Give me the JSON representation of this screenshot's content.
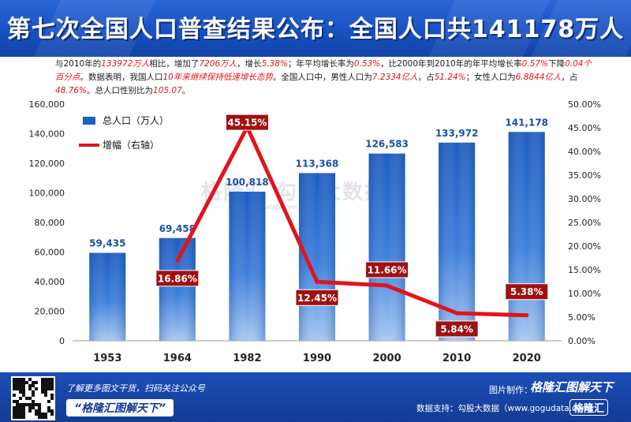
{
  "header": {
    "title": "第七次全国人口普查结果公布：全国人口共141178万人"
  },
  "description": {
    "segments": [
      {
        "text": "与2010年的",
        "hl": false
      },
      {
        "text": "133972万人",
        "hl": true
      },
      {
        "text": "相比，增加了",
        "hl": false
      },
      {
        "text": "7206万人",
        "hl": true
      },
      {
        "text": "，增长",
        "hl": false
      },
      {
        "text": "5.38%",
        "hl": true
      },
      {
        "text": "；年平均增长率为",
        "hl": false
      },
      {
        "text": "0.53%",
        "hl": true
      },
      {
        "text": "，比2000年到2010年的年平均增长率",
        "hl": false
      },
      {
        "text": "0.57%",
        "hl": true
      },
      {
        "text": "下降",
        "hl": false
      },
      {
        "text": "0.04个百分点",
        "hl": true
      },
      {
        "text": "。数据表明，我国人口",
        "hl": false
      },
      {
        "text": "10年来继续保持低速增长态势",
        "hl": true
      },
      {
        "text": "。全国人口中，男性人口为",
        "hl": false
      },
      {
        "text": "7.2334亿人",
        "hl": true
      },
      {
        "text": "，占",
        "hl": false
      },
      {
        "text": "51.24%",
        "hl": true
      },
      {
        "text": "；女性人口为",
        "hl": false
      },
      {
        "text": "6.8844亿人",
        "hl": true
      },
      {
        "text": "，占",
        "hl": false
      },
      {
        "text": "48.76%",
        "hl": true
      },
      {
        "text": "。总人口性别比为",
        "hl": false
      },
      {
        "text": "105.07",
        "hl": true
      },
      {
        "text": "。",
        "hl": false
      }
    ]
  },
  "chart_data": {
    "type": "bar",
    "categories": [
      "1953",
      "1964",
      "1982",
      "1990",
      "2000",
      "2010",
      "2020"
    ],
    "series": [
      {
        "name": "总人口（万人）",
        "type": "bar",
        "axis": "left",
        "values": [
          59435,
          69458,
          100818,
          113368,
          126583,
          133972,
          141178
        ],
        "labels": [
          "59,435",
          "69,458",
          "100,818",
          "113,368",
          "126,583",
          "133,972",
          "141,178"
        ]
      },
      {
        "name": "增幅（右轴）",
        "type": "line",
        "axis": "right",
        "x": [
          "1964",
          "1982",
          "1990",
          "2000",
          "2010",
          "2020"
        ],
        "values": [
          16.86,
          45.15,
          12.45,
          11.66,
          5.84,
          5.38
        ],
        "labels": [
          "16.86%",
          "45.15%",
          "12.45%",
          "11.66%",
          "5.84%",
          "5.38%"
        ]
      }
    ],
    "ylim": [
      0,
      160000
    ],
    "yticks": [
      "0",
      "20,000",
      "40,000",
      "60,000",
      "80,000",
      "100,000",
      "120,000",
      "140,000",
      "160,000"
    ],
    "y2lim": [
      0,
      50
    ],
    "y2ticks": [
      "0.00%",
      "5.00%",
      "10.00%",
      "15.00%",
      "20.00%",
      "25.00%",
      "30.00%",
      "35.00%",
      "40.00%",
      "45.00%",
      "50.00%"
    ],
    "legend": "top-left",
    "grid": false,
    "colors": {
      "bar": "#1f5fbf",
      "line": "#e0151a",
      "label_box": "#a01010"
    }
  },
  "watermark": {
    "text": "格隆汇 勾股大数据",
    "url": "www.gogudata.com"
  },
  "footer": {
    "qr_caption": "了解更多图文干货，扫码关注公众号",
    "slogan": "“格隆汇图解天下”",
    "credit_label": "图片制作：",
    "brand": "格隆汇图解天下",
    "source": "数据支持：勾股大数据（www.gogudata.com）",
    "logo": "格隆汇"
  }
}
